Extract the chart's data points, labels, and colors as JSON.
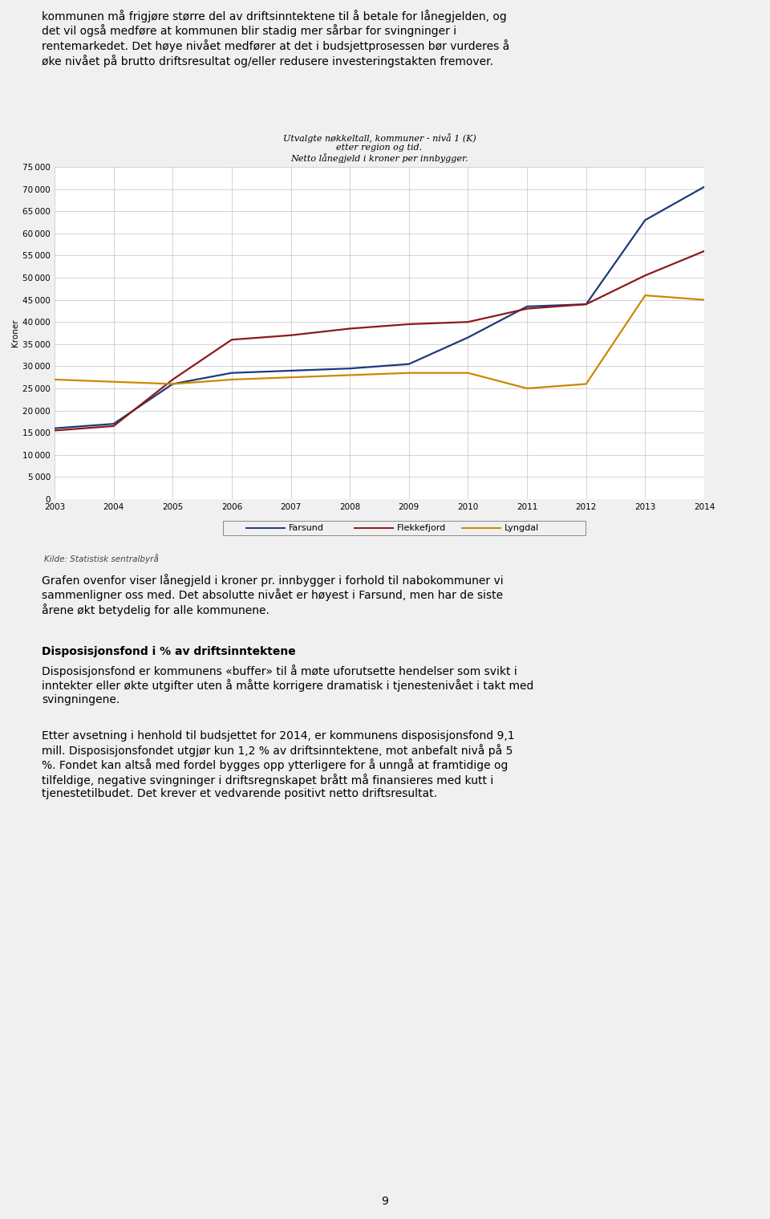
{
  "title_line1": "Utvalgte nøkkeltall, kommuner - nivå 1 (K)",
  "title_line2": "etter region og tid.",
  "title_line3": "Netto lånegjeld i kroner per innbygger.",
  "ylabel": "Kroner",
  "source_label": "Kilde: Statistisk sentralbyrå",
  "years": [
    2003,
    2004,
    2005,
    2006,
    2007,
    2008,
    2009,
    2010,
    2011,
    2012,
    2013,
    2014
  ],
  "farsund": [
    16000,
    17000,
    26000,
    28500,
    29000,
    29500,
    30500,
    36500,
    43500,
    44000,
    63000,
    70500
  ],
  "flekkefjord": [
    15500,
    16500,
    27000,
    36000,
    37000,
    38500,
    39500,
    40000,
    43000,
    44000,
    50500,
    56000
  ],
  "lyngdal": [
    27000,
    26500,
    26000,
    27000,
    27500,
    28000,
    28500,
    28500,
    25000,
    26000,
    46000,
    45000
  ],
  "farsund_color": "#1F3A7A",
  "flekkefjord_color": "#8B1A1A",
  "lyngdal_color": "#CC8800",
  "ylim": [
    0,
    75000
  ],
  "yticks": [
    0,
    5000,
    10000,
    15000,
    20000,
    25000,
    30000,
    35000,
    40000,
    45000,
    50000,
    55000,
    60000,
    65000,
    70000,
    75000
  ],
  "background_color": "#F0F0F0",
  "plot_bg_color": "#FFFFFF",
  "grid_color": "#CCCCCC",
  "legend_labels": [
    "Farsund",
    "Flekkefjord",
    "Lyngdal"
  ],
  "page_number": "9",
  "top_text": "kommunen må frigjøre større del av driftsinntektene til å betale for lånegjelden, og\ndet vil også medføre at kommunen blir stadig mer sårbar for svingninger i\nrentemarkedet. Det høye nivået medfører at det i budsjettprosessen bør vurderes å\nøke nivået på brutto driftsresultat og/eller redusere investeringstakten fremover.",
  "below_text1": "Grafen ovenfor viser lånegjeld i kroner pr. innbygger i forhold til nabokommuner vi\nsammenligner oss med. Det absolutte nivået er høyest i Farsund, men har de siste\nårene økt betydelig for alle kommunene.",
  "disp_heading": "Disposisjonsfond i % av driftsinntektene",
  "disp_text": "Disposisjonsfond er kommunens «buffer» til å møte uforutsette hendelser som svikt i\ninntekter eller økte utgifter uten å måtte korrigere dramatisk i tjenestenivået i takt med\nsvingningene.",
  "etter_text": "Etter avsetning i henhold til budsjettet for 2014, er kommunens disposisjonsfond 9,1\nmill. Disposisjonsfondet utgjør kun 1,2 % av driftsinntektene, mot anbefalt nivå på 5\n%. Fondet kan altså med fordel bygges opp ytterligere for å unngå at framtidige og\ntilfeldige, negative svingninger i driftsregnskapet brått må finansieres med kutt i\ntjenestetilbudet. Det krever et vedvarende positivt netto driftsresultat."
}
